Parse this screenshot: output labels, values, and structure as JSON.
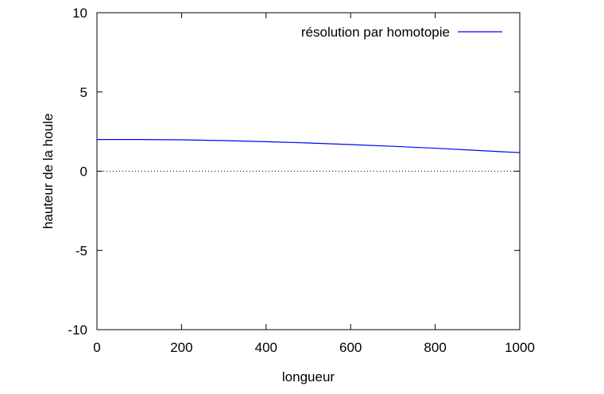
{
  "chart_data": {
    "type": "line",
    "title": "",
    "xlabel": "longueur",
    "ylabel": "hauteur de la houle",
    "xlim": [
      0,
      1000
    ],
    "ylim": [
      -10,
      10
    ],
    "x_ticks": [
      0,
      200,
      400,
      600,
      800,
      1000
    ],
    "y_ticks": [
      -10,
      -5,
      0,
      5,
      10
    ],
    "x_tick_labels": [
      "0",
      "200",
      "400",
      "600",
      "800",
      "1000"
    ],
    "y_tick_labels": [
      "-10",
      "-5",
      "0",
      "5",
      "10"
    ],
    "grid": false,
    "zero_line": {
      "y": 0,
      "style": "dotted"
    },
    "legend": {
      "position": "top-right"
    },
    "series": [
      {
        "name": "résolution par homotopie",
        "color": "#0000ff",
        "x": [
          0,
          100,
          200,
          300,
          400,
          500,
          600,
          700,
          800,
          900,
          1000
        ],
        "y": [
          2.0,
          2.0,
          1.98,
          1.93,
          1.86,
          1.78,
          1.68,
          1.57,
          1.45,
          1.31,
          1.17
        ]
      }
    ]
  }
}
